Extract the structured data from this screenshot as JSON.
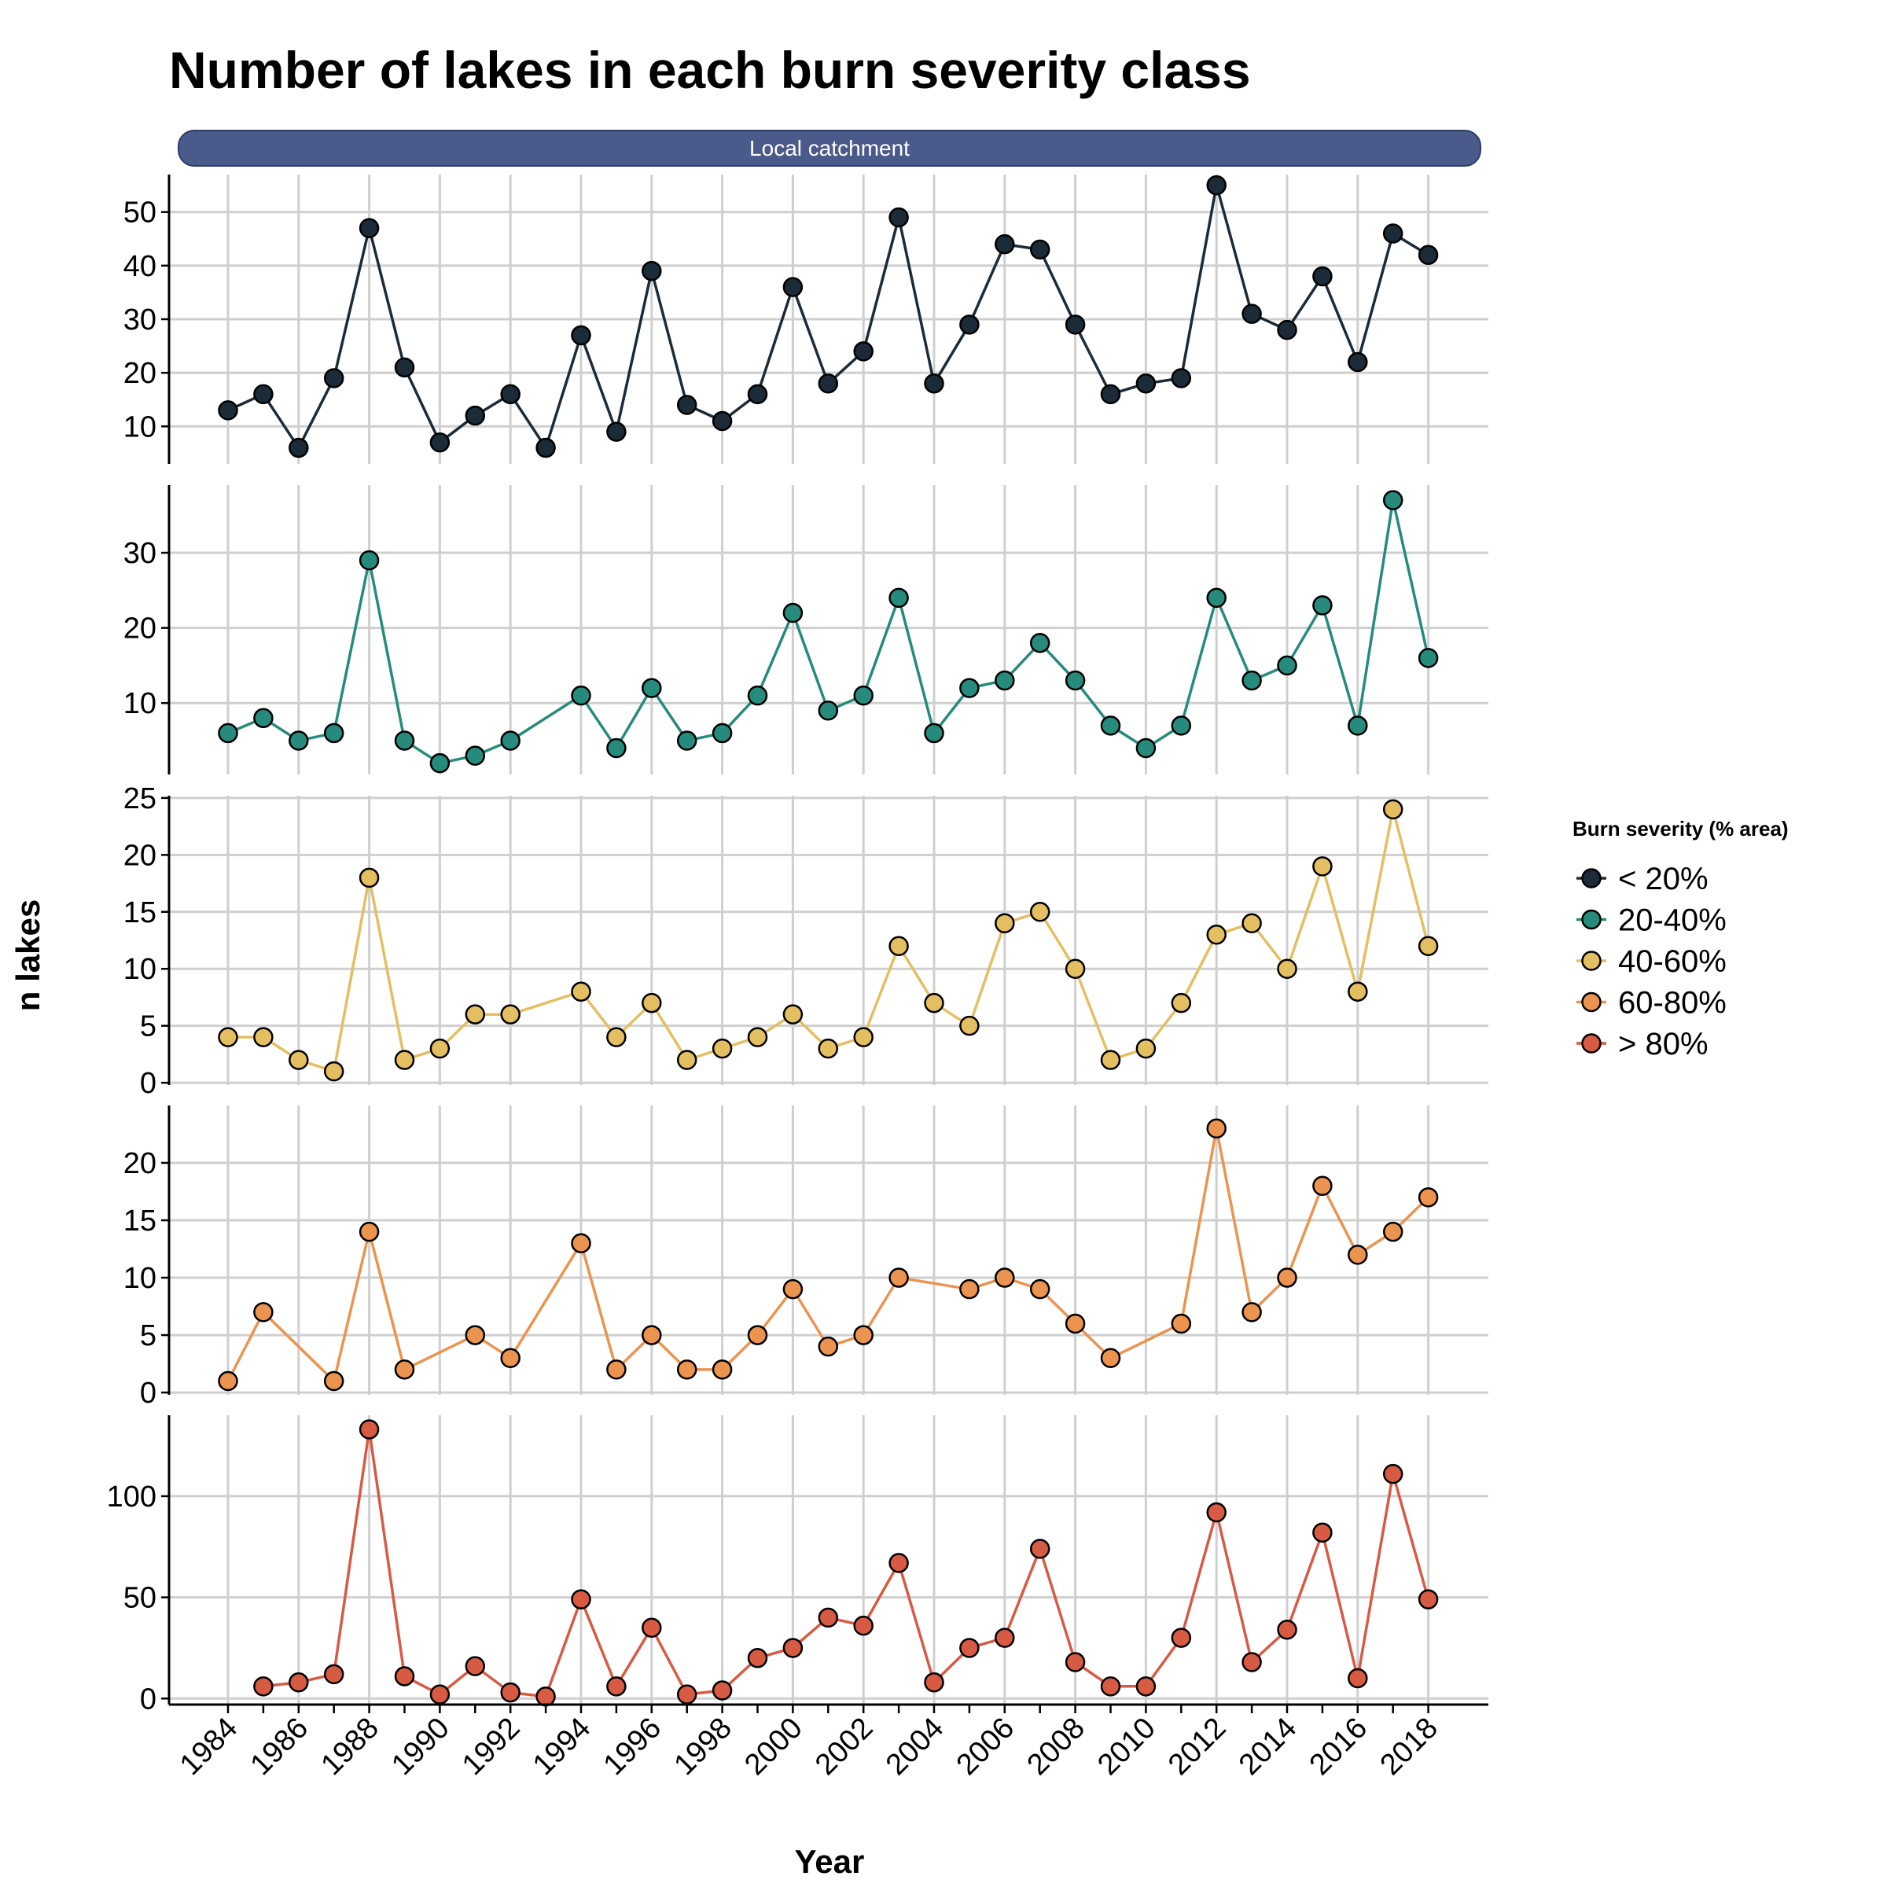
{
  "chart_data": {
    "type": "line",
    "title": "Number of lakes in each burn severity class",
    "facet_label": "Local catchment",
    "xlabel": "Year",
    "ylabel": "n lakes",
    "x_ticks": [
      "1984",
      "1986",
      "1988",
      "1990",
      "1992",
      "1994",
      "1996",
      "1998",
      "2000",
      "2002",
      "2004",
      "2006",
      "2008",
      "2010",
      "2012",
      "2014",
      "2016",
      "2018"
    ],
    "legend": {
      "title": "Burn severity (% area)",
      "position": "right"
    },
    "grid": true,
    "series": [
      {
        "name": "< 20%",
        "color": "#1c2b38",
        "ylim": [
          3,
          57
        ],
        "yticks": [
          10,
          20,
          30,
          40,
          50
        ],
        "points": [
          [
            1984,
            13
          ],
          [
            1985,
            16
          ],
          [
            1986,
            6
          ],
          [
            1987,
            19
          ],
          [
            1988,
            47
          ],
          [
            1989,
            21
          ],
          [
            1990,
            7
          ],
          [
            1991,
            12
          ],
          [
            1992,
            16
          ],
          [
            1993,
            6
          ],
          [
            1994,
            27
          ],
          [
            1995,
            9
          ],
          [
            1996,
            39
          ],
          [
            1997,
            14
          ],
          [
            1998,
            11
          ],
          [
            1999,
            16
          ],
          [
            2000,
            36
          ],
          [
            2001,
            18
          ],
          [
            2002,
            24
          ],
          [
            2003,
            49
          ],
          [
            2004,
            18
          ],
          [
            2005,
            29
          ],
          [
            2006,
            44
          ],
          [
            2007,
            43
          ],
          [
            2008,
            29
          ],
          [
            2009,
            16
          ],
          [
            2010,
            18
          ],
          [
            2011,
            19
          ],
          [
            2012,
            55
          ],
          [
            2013,
            31
          ],
          [
            2014,
            28
          ],
          [
            2015,
            38
          ],
          [
            2016,
            22
          ],
          [
            2017,
            46
          ],
          [
            2018,
            42
          ]
        ]
      },
      {
        "name": "20-40%",
        "color": "#268b7c",
        "ylim": [
          0.5,
          39
        ],
        "yticks": [
          10,
          20,
          30
        ],
        "points": [
          [
            1984,
            6
          ],
          [
            1985,
            8
          ],
          [
            1986,
            5
          ],
          [
            1987,
            6
          ],
          [
            1988,
            29
          ],
          [
            1989,
            5
          ],
          [
            1990,
            2
          ],
          [
            1991,
            3
          ],
          [
            1992,
            5
          ],
          [
            1994,
            11
          ],
          [
            1995,
            4
          ],
          [
            1996,
            12
          ],
          [
            1997,
            5
          ],
          [
            1998,
            6
          ],
          [
            1999,
            11
          ],
          [
            2000,
            22
          ],
          [
            2001,
            9
          ],
          [
            2002,
            11
          ],
          [
            2003,
            24
          ],
          [
            2004,
            6
          ],
          [
            2005,
            12
          ],
          [
            2006,
            13
          ],
          [
            2007,
            18
          ],
          [
            2008,
            13
          ],
          [
            2009,
            7
          ],
          [
            2010,
            4
          ],
          [
            2011,
            7
          ],
          [
            2012,
            24
          ],
          [
            2013,
            13
          ],
          [
            2014,
            15
          ],
          [
            2015,
            23
          ],
          [
            2016,
            7
          ],
          [
            2017,
            37
          ],
          [
            2018,
            16
          ]
        ]
      },
      {
        "name": "40-60%",
        "color": "#e3bf62",
        "ylim": [
          -0.2,
          25.2
        ],
        "yticks": [
          0,
          5,
          10,
          15,
          20,
          25
        ],
        "points": [
          [
            1984,
            4
          ],
          [
            1985,
            4
          ],
          [
            1986,
            2
          ],
          [
            1987,
            1
          ],
          [
            1988,
            18
          ],
          [
            1989,
            2
          ],
          [
            1990,
            3
          ],
          [
            1991,
            6
          ],
          [
            1992,
            6
          ],
          [
            1994,
            8
          ],
          [
            1995,
            4
          ],
          [
            1996,
            7
          ],
          [
            1997,
            2
          ],
          [
            1998,
            3
          ],
          [
            1999,
            4
          ],
          [
            2000,
            6
          ],
          [
            2001,
            3
          ],
          [
            2002,
            4
          ],
          [
            2003,
            12
          ],
          [
            2004,
            7
          ],
          [
            2005,
            5
          ],
          [
            2006,
            14
          ],
          [
            2007,
            15
          ],
          [
            2008,
            10
          ],
          [
            2009,
            2
          ],
          [
            2010,
            3
          ],
          [
            2011,
            7
          ],
          [
            2012,
            13
          ],
          [
            2013,
            14
          ],
          [
            2014,
            10
          ],
          [
            2015,
            19
          ],
          [
            2016,
            8
          ],
          [
            2017,
            24
          ],
          [
            2018,
            12
          ]
        ]
      },
      {
        "name": "60-80%",
        "color": "#ea9450",
        "ylim": [
          -0.2,
          25
        ],
        "yticks": [
          0,
          5,
          10,
          15,
          20
        ],
        "points": [
          [
            1984,
            1
          ],
          [
            1985,
            7
          ],
          [
            1987,
            1
          ],
          [
            1988,
            14
          ],
          [
            1989,
            2
          ],
          [
            1991,
            5
          ],
          [
            1992,
            3
          ],
          [
            1994,
            13
          ],
          [
            1995,
            2
          ],
          [
            1996,
            5
          ],
          [
            1997,
            2
          ],
          [
            1998,
            2
          ],
          [
            1999,
            5
          ],
          [
            2000,
            9
          ],
          [
            2001,
            4
          ],
          [
            2002,
            5
          ],
          [
            2003,
            10
          ],
          [
            2005,
            9
          ],
          [
            2006,
            10
          ],
          [
            2007,
            9
          ],
          [
            2008,
            6
          ],
          [
            2009,
            3
          ],
          [
            2011,
            6
          ],
          [
            2012,
            23
          ],
          [
            2013,
            7
          ],
          [
            2014,
            10
          ],
          [
            2015,
            18
          ],
          [
            2016,
            12
          ],
          [
            2017,
            14
          ],
          [
            2018,
            17
          ]
        ]
      },
      {
        "name": "> 80%",
        "color": "#d75b43",
        "ylim": [
          -3,
          140
        ],
        "yticks": [
          0,
          50,
          100
        ],
        "points": [
          [
            1985,
            6
          ],
          [
            1986,
            8
          ],
          [
            1987,
            12
          ],
          [
            1988,
            133
          ],
          [
            1989,
            11
          ],
          [
            1990,
            2
          ],
          [
            1991,
            16
          ],
          [
            1992,
            3
          ],
          [
            1993,
            1
          ],
          [
            1994,
            49
          ],
          [
            1995,
            6
          ],
          [
            1996,
            35
          ],
          [
            1997,
            2
          ],
          [
            1998,
            4
          ],
          [
            1999,
            20
          ],
          [
            2000,
            25
          ],
          [
            2001,
            40
          ],
          [
            2002,
            36
          ],
          [
            2003,
            67
          ],
          [
            2004,
            8
          ],
          [
            2005,
            25
          ],
          [
            2006,
            30
          ],
          [
            2007,
            74
          ],
          [
            2008,
            18
          ],
          [
            2009,
            6
          ],
          [
            2010,
            6
          ],
          [
            2011,
            30
          ],
          [
            2012,
            92
          ],
          [
            2013,
            18
          ],
          [
            2014,
            34
          ],
          [
            2015,
            82
          ],
          [
            2016,
            10
          ],
          [
            2017,
            111
          ],
          [
            2018,
            49
          ]
        ]
      }
    ]
  }
}
